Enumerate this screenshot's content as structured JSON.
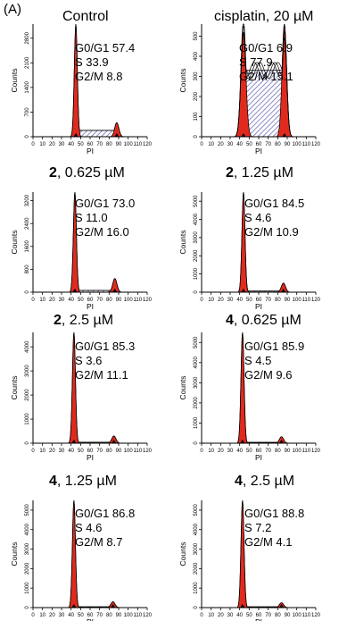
{
  "panel_label": "(A)",
  "chart_data": [
    {
      "type": "histogram",
      "title": "Control",
      "compound": "",
      "conc": "Control",
      "xlabel": "PI",
      "ylabel": "Counts",
      "xlim": [
        0,
        120
      ],
      "xticks": [
        0,
        10,
        20,
        30,
        40,
        50,
        60,
        70,
        80,
        90,
        100,
        110,
        120
      ],
      "ylim": [
        0,
        3200
      ],
      "yticks": [
        0,
        700,
        1400,
        2100,
        2800
      ],
      "stats": [
        {
          "label": "G0/G1",
          "value": "57.4"
        },
        {
          "label": "S",
          "value": "33.9"
        },
        {
          "label": "G2/M",
          "value": "8.8"
        }
      ],
      "g1_peak_x": 45,
      "g2_peak_x": 88,
      "g1_peak_height": 3200,
      "g2_peak_height": 400,
      "s_height": 180,
      "multi_trace": false,
      "colors": {
        "peak": "#e02a1e",
        "s_phase": "#6d71b6",
        "outline": "#000000"
      }
    },
    {
      "type": "histogram",
      "title": "cisplatin, 20 µM",
      "compound": "",
      "conc": "cisplatin, 20 µM",
      "xlabel": "PI",
      "ylabel": "Counts",
      "xlim": [
        0,
        120
      ],
      "xticks": [
        0,
        10,
        20,
        30,
        40,
        50,
        60,
        70,
        80,
        90,
        100,
        110,
        120
      ],
      "ylim": [
        0,
        560
      ],
      "yticks": [
        0,
        100,
        200,
        300,
        400,
        500
      ],
      "stats": [
        {
          "label": "G0/G1",
          "value": "6.9"
        },
        {
          "label": "S",
          "value": "77.9"
        },
        {
          "label": "G2/M",
          "value": "15.1"
        }
      ],
      "g1_peak_x": 44,
      "g2_peak_x": 87,
      "g1_peak_height": 520,
      "g2_peak_height": 560,
      "s_height": 330,
      "multi_trace": true,
      "colors": {
        "peak": "#e02a1e",
        "s_phase": "#6d71b6",
        "outline": "#000000"
      }
    },
    {
      "type": "histogram",
      "title": "2, 0.625 µM",
      "compound": "2",
      "conc": ", 0.625 µM",
      "xlabel": "PI",
      "ylabel": "Counts",
      "xlim": [
        0,
        120
      ],
      "xticks": [
        0,
        10,
        20,
        30,
        40,
        50,
        60,
        70,
        80,
        90,
        100,
        110,
        120
      ],
      "ylim": [
        0,
        3500
      ],
      "yticks": [
        0,
        800,
        1600,
        2400,
        3200
      ],
      "stats": [
        {
          "label": "G0/G1",
          "value": "73.0"
        },
        {
          "label": "S",
          "value": "11.0"
        },
        {
          "label": "G2/M",
          "value": "16.0"
        }
      ],
      "g1_peak_x": 44,
      "g2_peak_x": 86,
      "g1_peak_height": 3500,
      "g2_peak_height": 480,
      "s_height": 60,
      "multi_trace": false,
      "colors": {
        "peak": "#e02a1e",
        "s_phase": "#6d71b6",
        "outline": "#000000"
      }
    },
    {
      "type": "histogram",
      "title": "2, 1.25 µM",
      "compound": "2",
      "conc": ", 1.25 µM",
      "xlabel": "PI",
      "ylabel": "Counts",
      "xlim": [
        0,
        120
      ],
      "xticks": [
        0,
        10,
        20,
        30,
        40,
        50,
        60,
        70,
        80,
        90,
        100,
        110,
        120
      ],
      "ylim": [
        0,
        5500
      ],
      "yticks": [
        0,
        1000,
        2000,
        3000,
        4000,
        5000
      ],
      "stats": [
        {
          "label": "G0/G1",
          "value": "84.5"
        },
        {
          "label": "S",
          "value": "4.6"
        },
        {
          "label": "G2/M",
          "value": "10.9"
        }
      ],
      "g1_peak_x": 44,
      "g2_peak_x": 86,
      "g1_peak_height": 5500,
      "g2_peak_height": 500,
      "s_height": 60,
      "multi_trace": false,
      "colors": {
        "peak": "#e02a1e",
        "s_phase": "#6d71b6",
        "outline": "#000000"
      }
    },
    {
      "type": "histogram",
      "title": "2, 2.5 µM",
      "compound": "2",
      "conc": ", 2.5 µM",
      "xlabel": "PI",
      "ylabel": "Counts",
      "xlim": [
        0,
        120
      ],
      "xticks": [
        0,
        10,
        20,
        30,
        40,
        50,
        60,
        70,
        80,
        90,
        100,
        110,
        120
      ],
      "ylim": [
        0,
        4600
      ],
      "yticks": [
        0,
        1000,
        2000,
        3000,
        4000
      ],
      "stats": [
        {
          "label": "G0/G1",
          "value": "85.3"
        },
        {
          "label": "S",
          "value": "3.6"
        },
        {
          "label": "G2/M",
          "value": "11.1"
        }
      ],
      "g1_peak_x": 43,
      "g2_peak_x": 85,
      "g1_peak_height": 4600,
      "g2_peak_height": 300,
      "s_height": 40,
      "multi_trace": false,
      "colors": {
        "peak": "#e02a1e",
        "s_phase": "#6d71b6",
        "outline": "#000000"
      }
    },
    {
      "type": "histogram",
      "title": "4, 0.625 µM",
      "compound": "4",
      "conc": ", 0.625 µM",
      "xlabel": "PI",
      "ylabel": "Counts",
      "xlim": [
        0,
        120
      ],
      "xticks": [
        0,
        10,
        20,
        30,
        40,
        50,
        60,
        70,
        80,
        90,
        100,
        110,
        120
      ],
      "ylim": [
        0,
        5500
      ],
      "yticks": [
        0,
        1000,
        2000,
        3000,
        4000,
        5000
      ],
      "stats": [
        {
          "label": "G0/G1",
          "value": "85.9"
        },
        {
          "label": "S",
          "value": "4.5"
        },
        {
          "label": "G2/M",
          "value": "9.6"
        }
      ],
      "g1_peak_x": 43,
      "g2_peak_x": 84,
      "g1_peak_height": 5500,
      "g2_peak_height": 320,
      "s_height": 40,
      "multi_trace": false,
      "colors": {
        "peak": "#e02a1e",
        "s_phase": "#6d71b6",
        "outline": "#000000"
      }
    },
    {
      "type": "histogram",
      "title": "4, 1.25 µM",
      "compound": "4",
      "conc": ", 1.25 µM",
      "xlabel": "PI",
      "ylabel": "Counts",
      "xlim": [
        0,
        120
      ],
      "xticks": [
        0,
        10,
        20,
        30,
        40,
        50,
        60,
        70,
        80,
        90,
        100,
        110,
        120
      ],
      "ylim": [
        0,
        5500
      ],
      "yticks": [
        0,
        1000,
        2000,
        3000,
        4000,
        5000
      ],
      "stats": [
        {
          "label": "G0/G1",
          "value": "86.8"
        },
        {
          "label": "S",
          "value": "4.6"
        },
        {
          "label": "G2/M",
          "value": "8.7"
        }
      ],
      "g1_peak_x": 43,
      "g2_peak_x": 84,
      "g1_peak_height": 5500,
      "g2_peak_height": 300,
      "s_height": 40,
      "multi_trace": false,
      "colors": {
        "peak": "#e02a1e",
        "s_phase": "#6d71b6",
        "outline": "#000000"
      }
    },
    {
      "type": "histogram",
      "title": "4, 2.5 µM",
      "compound": "4",
      "conc": ", 2.5 µM",
      "xlabel": "PI",
      "ylabel": "Counts",
      "xlim": [
        0,
        120
      ],
      "xticks": [
        0,
        10,
        20,
        30,
        40,
        50,
        60,
        70,
        80,
        90,
        100,
        110,
        120
      ],
      "ylim": [
        0,
        5500
      ],
      "yticks": [
        0,
        1000,
        2000,
        3000,
        4000,
        5000
      ],
      "stats": [
        {
          "label": "G0/G1",
          "value": "88.8"
        },
        {
          "label": "S",
          "value": "7.2"
        },
        {
          "label": "G2/M",
          "value": "4.1"
        }
      ],
      "g1_peak_x": 43,
      "g2_peak_x": 84,
      "g1_peak_height": 5500,
      "g2_peak_height": 250,
      "s_height": 40,
      "multi_trace": false,
      "colors": {
        "peak": "#e02a1e",
        "s_phase": "#6d71b6",
        "outline": "#000000"
      }
    }
  ]
}
